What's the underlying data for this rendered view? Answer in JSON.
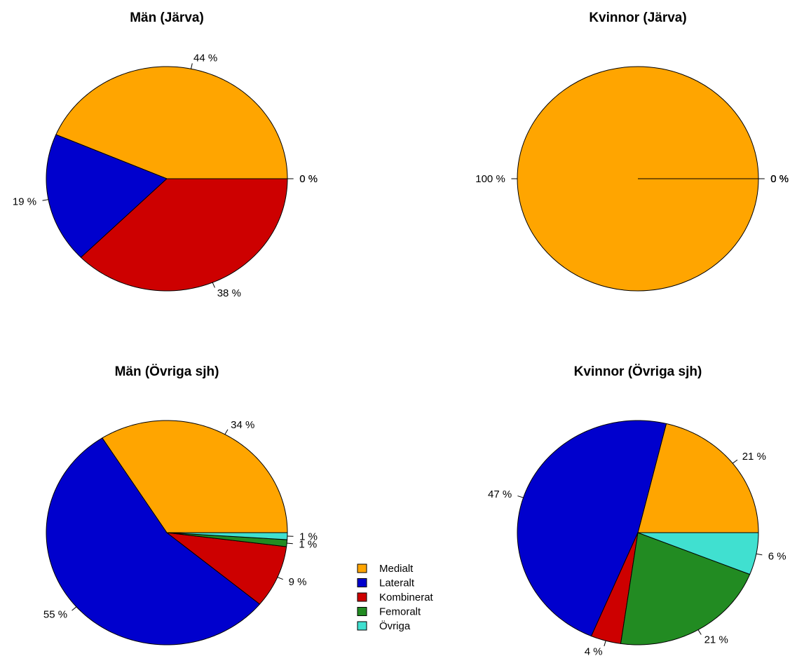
{
  "legend": {
    "placement": "bottom-center",
    "items": [
      {
        "label": "Medialt",
        "color": "#FFA500"
      },
      {
        "label": "Lateralt",
        "color": "#0000CD"
      },
      {
        "label": "Kombinerat",
        "color": "#CD0000"
      },
      {
        "label": "Femoralt",
        "color": "#228B22"
      },
      {
        "label": "Övriga",
        "color": "#40E0D0"
      }
    ]
  },
  "chart_data": [
    {
      "type": "pie",
      "title": "Män (Järva)",
      "categories": [
        "Medialt",
        "Lateralt",
        "Kombinerat",
        "Femoralt",
        "Övriga"
      ],
      "values": [
        44,
        19,
        38,
        0,
        0
      ],
      "labels": [
        "44 %",
        "19 %",
        "38 %",
        "0 %",
        "0 %"
      ]
    },
    {
      "type": "pie",
      "title": "Kvinnor (Järva)",
      "categories": [
        "Medialt",
        "Lateralt",
        "Kombinerat",
        "Femoralt",
        "Övriga"
      ],
      "values": [
        100,
        0,
        0,
        0,
        0
      ],
      "labels": [
        "100 %",
        "0 %",
        "0 %",
        "0 %",
        "0 %"
      ]
    },
    {
      "type": "pie",
      "title": "Män (Övriga sjh)",
      "categories": [
        "Medialt",
        "Lateralt",
        "Kombinerat",
        "Femoralt",
        "Övriga"
      ],
      "values": [
        34,
        55,
        9,
        1,
        1
      ],
      "labels": [
        "34 %",
        "55 %",
        "9 %",
        "1 %",
        "1 %"
      ]
    },
    {
      "type": "pie",
      "title": "Kvinnor (Övriga sjh)",
      "categories": [
        "Medialt",
        "Lateralt",
        "Kombinerat",
        "Femoralt",
        "Övriga"
      ],
      "values": [
        21,
        47,
        4,
        21,
        6
      ],
      "labels": [
        "21 %",
        "47 %",
        "4 %",
        "21 %",
        "6 %"
      ]
    }
  ]
}
